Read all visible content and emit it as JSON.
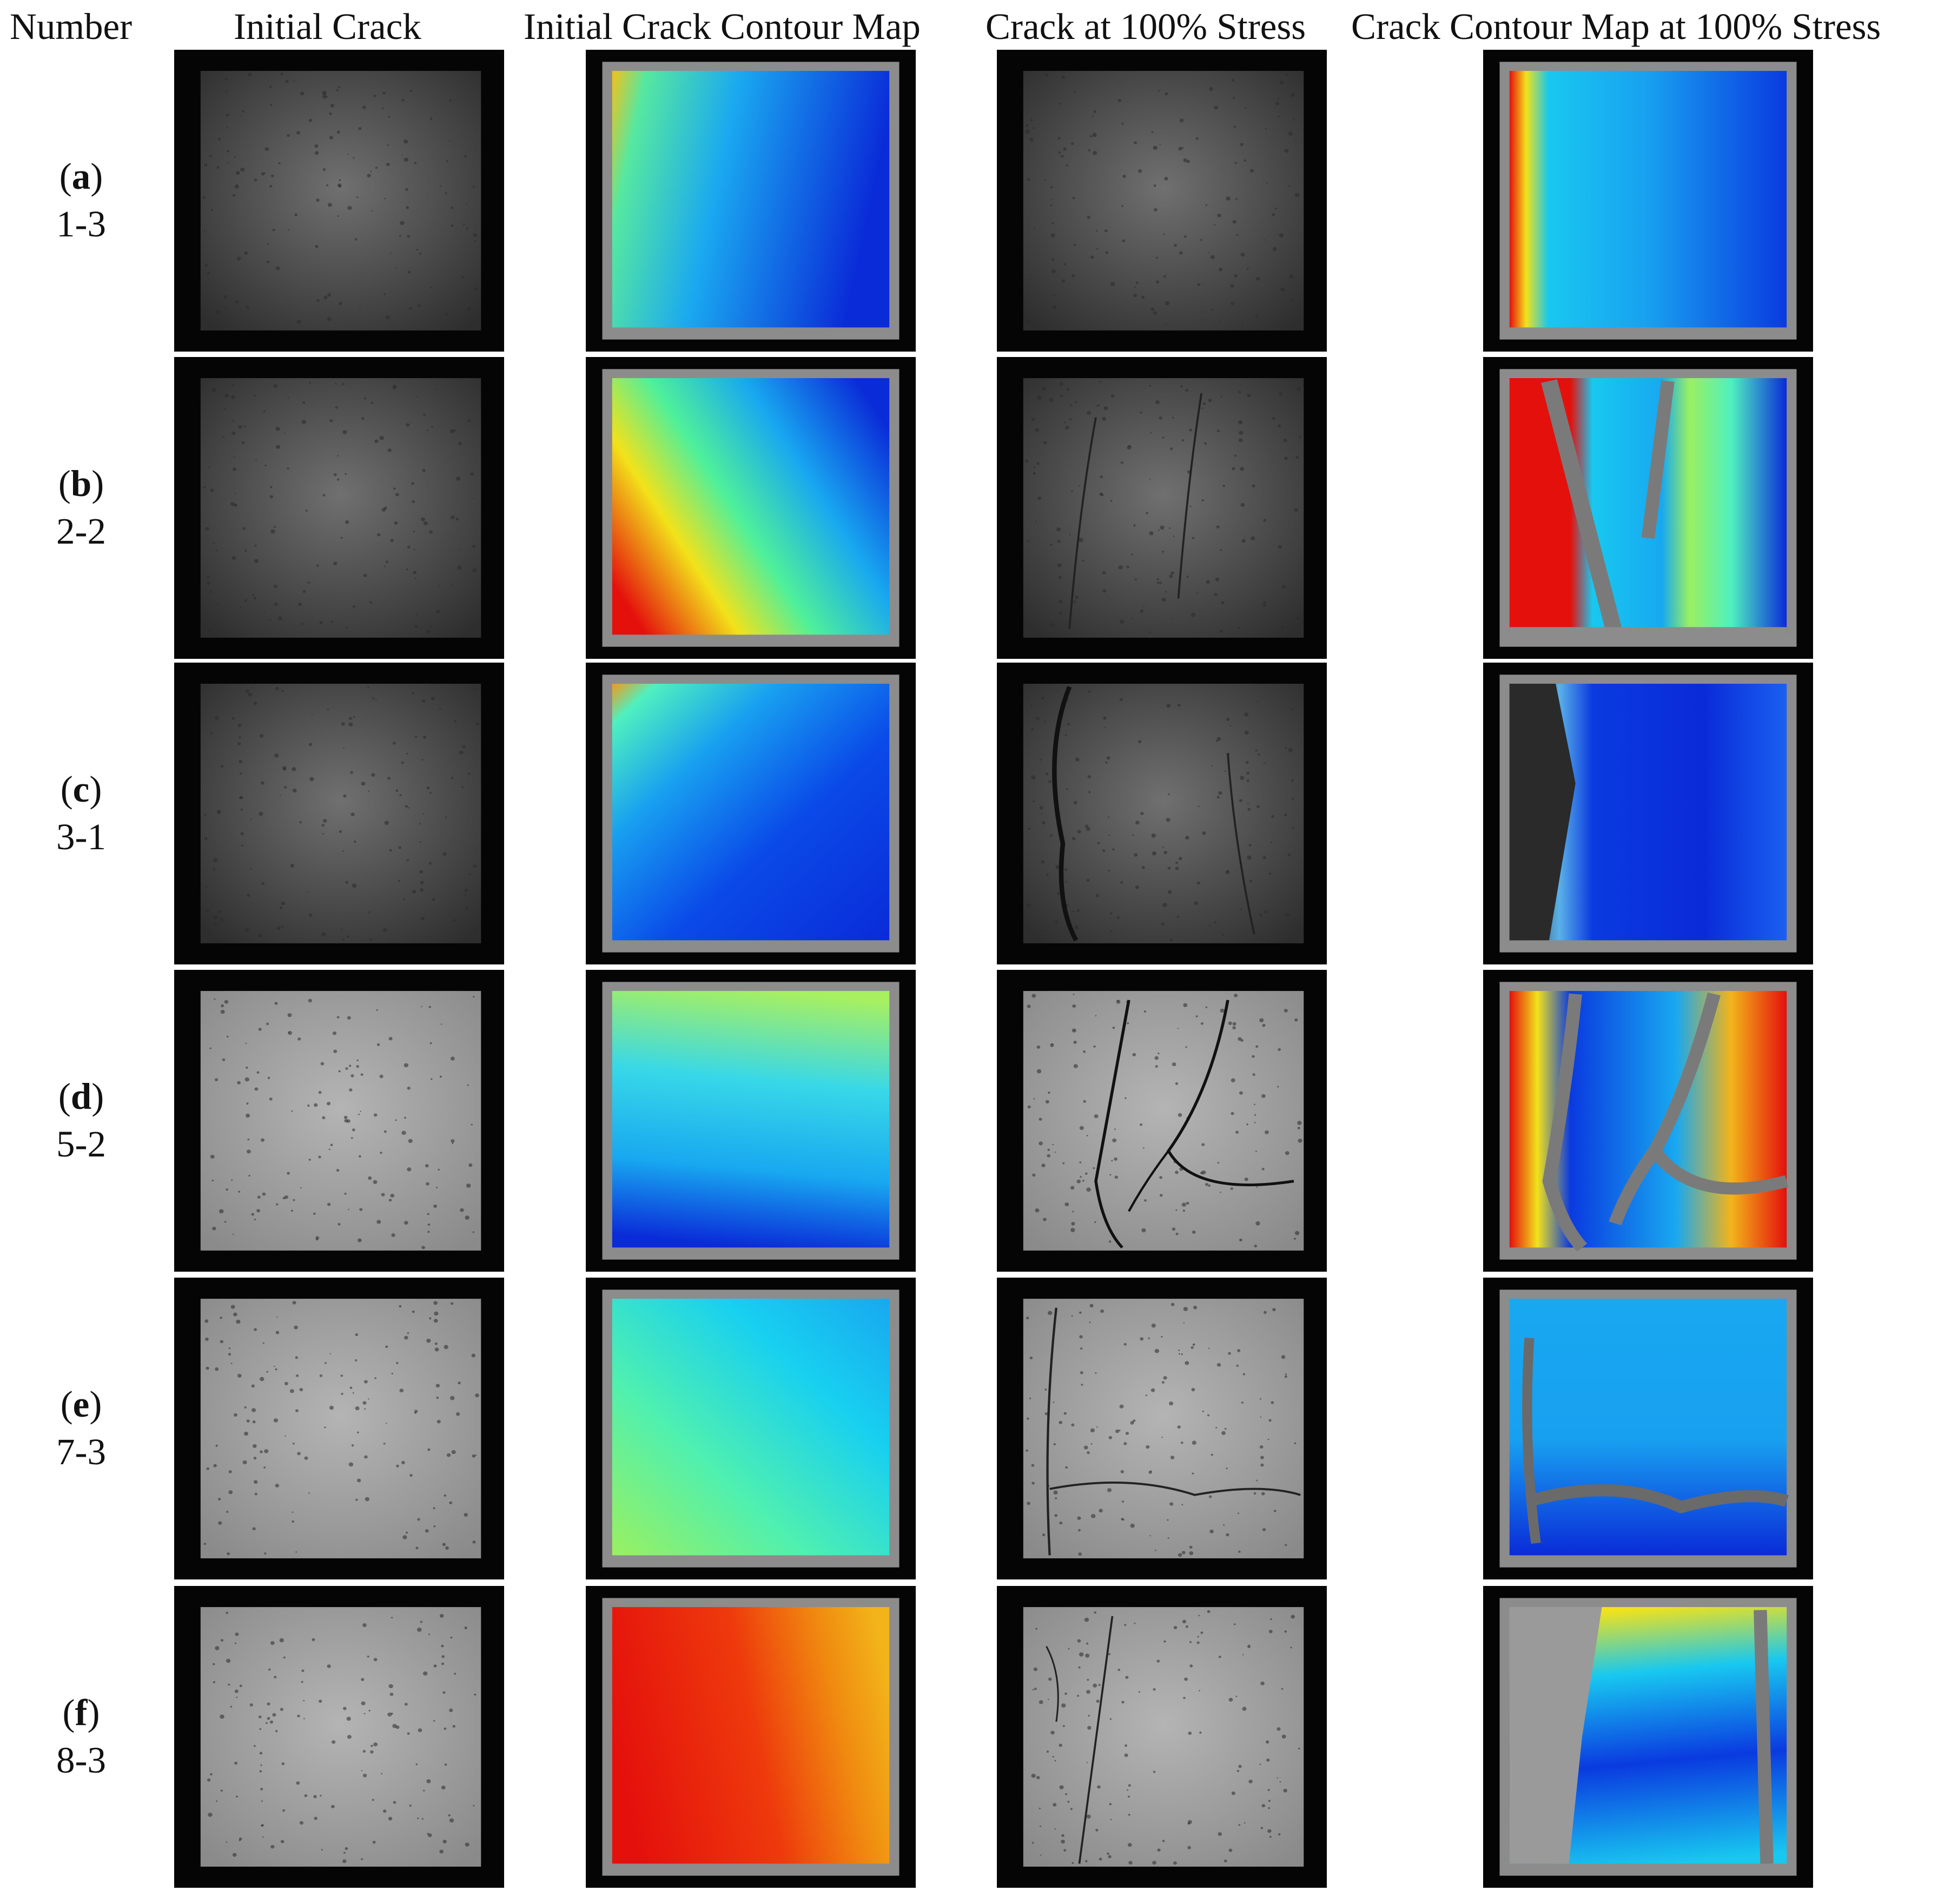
{
  "columns": [
    {
      "id": "number",
      "label": "Number"
    },
    {
      "id": "initial",
      "label": "Initial Crack"
    },
    {
      "id": "initial_map",
      "label": "Initial Crack Contour Map"
    },
    {
      "id": "stress",
      "label": "Crack at 100% Stress"
    },
    {
      "id": "stress_map",
      "label": "Crack Contour Map at 100% Stress"
    }
  ],
  "rows": [
    {
      "letter": "a",
      "number": "1-3"
    },
    {
      "letter": "b",
      "number": "2-2"
    },
    {
      "letter": "c",
      "number": "3-1"
    },
    {
      "letter": "d",
      "number": "5-2"
    },
    {
      "letter": "e",
      "number": "7-3"
    },
    {
      "letter": "f",
      "number": "8-3"
    }
  ],
  "colors": {
    "jet_blue": "#0a2bd8",
    "jet_cyan": "#18c8f0",
    "jet_green": "#4ff09a",
    "jet_yellow": "#f2e21a",
    "jet_red": "#e4100c",
    "specimen_gray": "#9a9a9a",
    "background_black": "#050505"
  }
}
